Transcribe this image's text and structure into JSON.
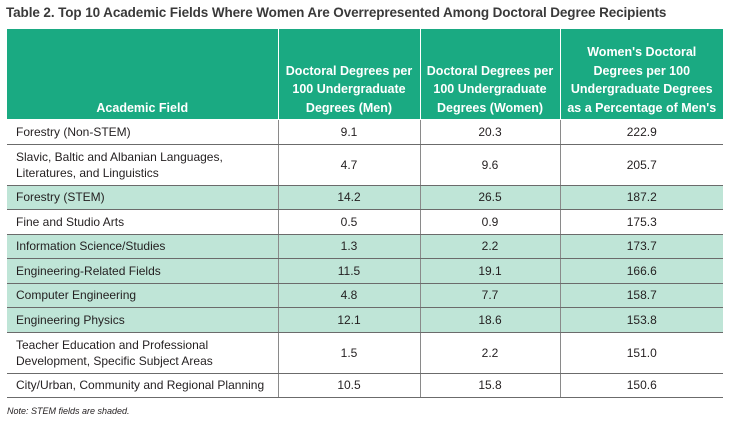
{
  "title": "Table 2. Top 10 Academic Fields Where Women Are Overrepresented Among Doctoral Degree Recipients",
  "colors": {
    "header_bg": "#1aaa82",
    "stem_row_bg": "#bfe5d7",
    "header_text": "#ffffff"
  },
  "columns": [
    "Academic Field",
    "Doctoral Degrees per 100 Undergraduate Degrees (Men)",
    "Doctoral Degrees per 100 Undergraduate Degrees (Women)",
    "Women's Doctoral Degrees per 100 Undergraduate Degrees as a Percentage of Men's"
  ],
  "rows": [
    {
      "field": "Forestry (Non-STEM)",
      "men": "9.1",
      "women": "20.3",
      "pct": "222.9",
      "stem": false
    },
    {
      "field": "Slavic, Baltic and Albanian Languages, Literatures, and Linguistics",
      "men": "4.7",
      "women": "9.6",
      "pct": "205.7",
      "stem": false
    },
    {
      "field": "Forestry (STEM)",
      "men": "14.2",
      "women": "26.5",
      "pct": "187.2",
      "stem": true
    },
    {
      "field": "Fine and Studio Arts",
      "men": "0.5",
      "women": "0.9",
      "pct": "175.3",
      "stem": false
    },
    {
      "field": "Information Science/Studies",
      "men": "1.3",
      "women": "2.2",
      "pct": "173.7",
      "stem": true
    },
    {
      "field": "Engineering-Related Fields",
      "men": "11.5",
      "women": "19.1",
      "pct": "166.6",
      "stem": true
    },
    {
      "field": "Computer Engineering",
      "men": "4.8",
      "women": "7.7",
      "pct": "158.7",
      "stem": true
    },
    {
      "field": "Engineering Physics",
      "men": "12.1",
      "women": "18.6",
      "pct": "153.8",
      "stem": true
    },
    {
      "field": "Teacher Education and Professional Development, Specific Subject Areas",
      "men": "1.5",
      "women": "2.2",
      "pct": "151.0",
      "stem": false
    },
    {
      "field": "City/Urban, Community and Regional Planning",
      "men": "10.5",
      "women": "15.8",
      "pct": "150.6",
      "stem": false
    }
  ],
  "note": "Note: STEM fields are shaded."
}
